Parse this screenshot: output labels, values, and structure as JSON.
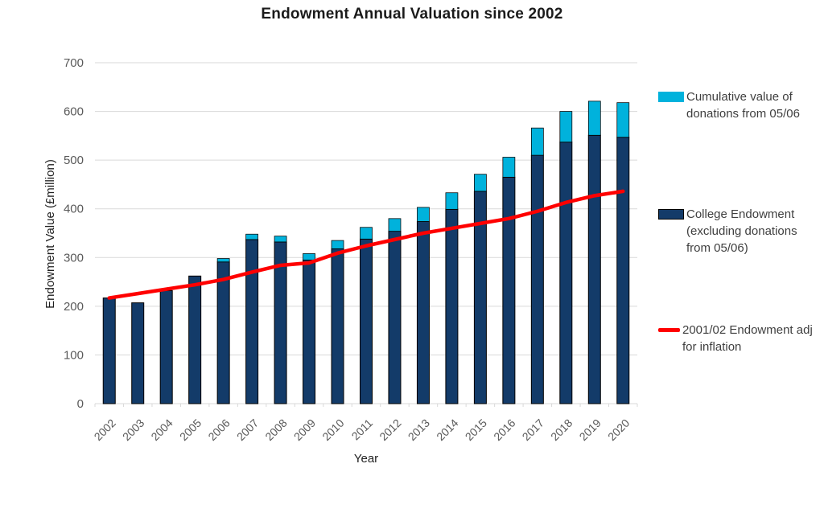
{
  "chart_data": {
    "type": "bar",
    "stacked": true,
    "title": "Endowment Annual Valuation since 2002",
    "xlabel": "Year",
    "ylabel": "Endowment Value (£million)",
    "ylim": [
      0,
      700
    ],
    "yticks": [
      0,
      100,
      200,
      300,
      400,
      500,
      600,
      700
    ],
    "grid": true,
    "legend_position": "right",
    "categories": [
      "2002",
      "2003",
      "2004",
      "2005",
      "2006",
      "2007",
      "2008",
      "2009",
      "2010",
      "2011",
      "2012",
      "2013",
      "2014",
      "2015",
      "2016",
      "2017",
      "2018",
      "2019",
      "2020"
    ],
    "series": [
      {
        "name": "College Endowment (excluding donations from 05/06)",
        "type": "bar",
        "color": "#133b69",
        "values": [
          217,
          207,
          232,
          262,
          291,
          337,
          332,
          295,
          318,
          338,
          354,
          374,
          399,
          436,
          465,
          510,
          537,
          551,
          547
        ]
      },
      {
        "name": "Cumulative value of donations from 05/06",
        "type": "bar",
        "color": "#00b2dc",
        "values": [
          0,
          0,
          0,
          0,
          7,
          11,
          12,
          13,
          17,
          24,
          26,
          29,
          34,
          35,
          41,
          56,
          63,
          70,
          71
        ]
      },
      {
        "name": "2001/02 Endowment adj for inflation",
        "type": "line",
        "color": "#ff0000",
        "values": [
          217,
          226,
          235,
          244,
          255,
          270,
          284,
          289,
          309,
          324,
          337,
          350,
          360,
          370,
          380,
          395,
          413,
          427,
          436
        ]
      }
    ]
  },
  "legend": {
    "items": [
      {
        "label": "Cumulative value of donations from 05/06",
        "swatch": "cyan-rect"
      },
      {
        "label": "College Endowment (excluding donations from 05/06)",
        "swatch": "navy-rect"
      },
      {
        "label": "2001/02 Endowment adj for inflation",
        "swatch": "red-line"
      }
    ]
  },
  "colors": {
    "college_bar": "#133b69",
    "donations_bar": "#00b2dc",
    "inflation_line": "#ff0000",
    "gridline": "#d9d9d9",
    "tick_label": "#595959",
    "bar_outline": "#000000"
  }
}
